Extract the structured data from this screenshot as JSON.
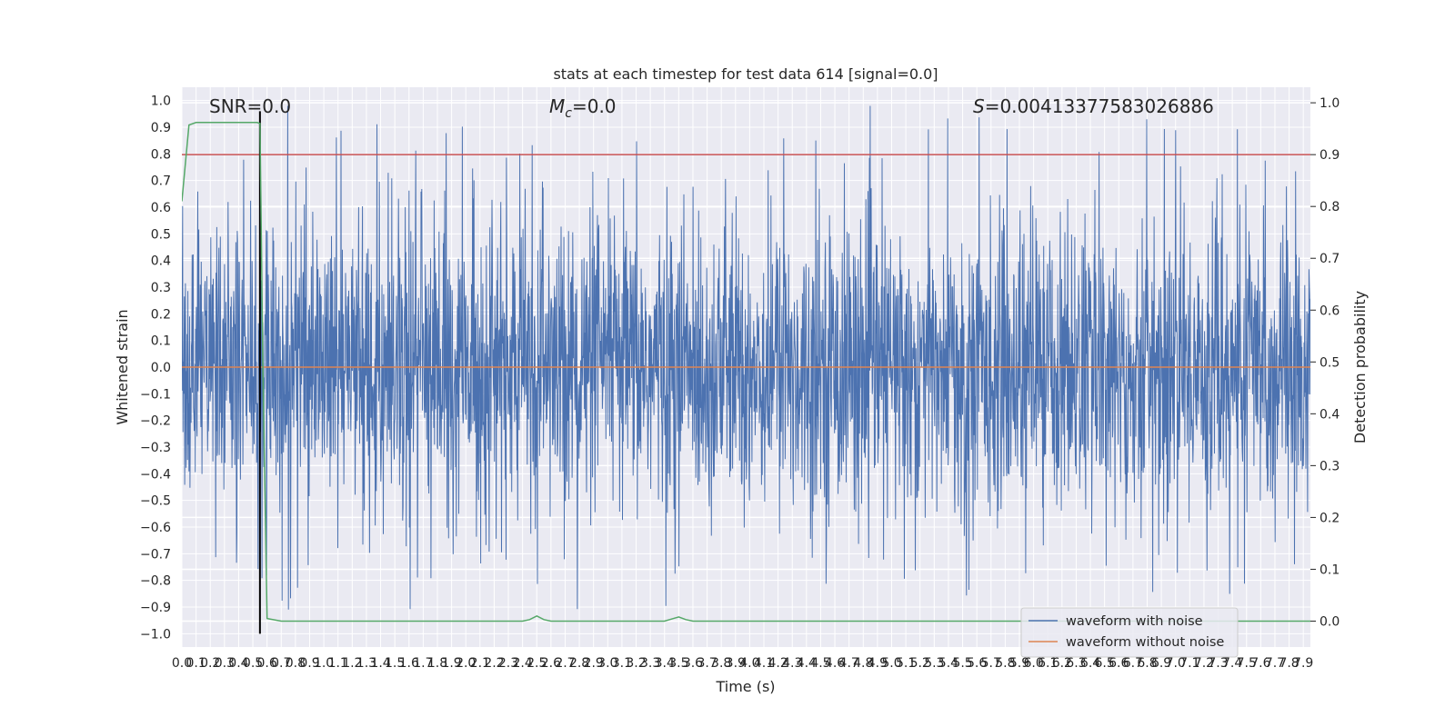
{
  "chart_data": {
    "type": "line",
    "title": "stats at each timestep for test data 614 [signal=0.0]",
    "xlabel": "Time (s)",
    "ylabel_left": "Whitened strain",
    "ylabel_right": "Detection probability",
    "xlim": [
      0.0,
      7.95
    ],
    "ylim_left": [
      -1.05,
      1.05
    ],
    "ylim_right": [
      -0.05,
      1.03
    ],
    "x_ticks": [
      "0.0",
      "0.1",
      "0.2",
      "0.3",
      "0.4",
      "0.5",
      "0.6",
      "0.7",
      "0.8",
      "0.9",
      "1.0",
      "1.1",
      "1.2",
      "1.3",
      "1.4",
      "1.5",
      "1.6",
      "1.7",
      "1.8",
      "1.9",
      "2.0",
      "2.1",
      "2.2",
      "2.3",
      "2.4",
      "2.5",
      "2.6",
      "2.7",
      "2.8",
      "2.9",
      "3.0",
      "3.1",
      "3.2",
      "3.3",
      "3.4",
      "3.5",
      "3.6",
      "3.7",
      "3.8",
      "3.9",
      "4.0",
      "4.1",
      "4.2",
      "4.3",
      "4.4",
      "4.5",
      "4.6",
      "4.7",
      "4.8",
      "4.9",
      "5.0",
      "5.1",
      "5.2",
      "5.3",
      "5.4",
      "5.5",
      "5.6",
      "5.7",
      "5.8",
      "5.9",
      "6.0",
      "6.1",
      "6.2",
      "6.3",
      "6.4",
      "6.5",
      "6.6",
      "6.7",
      "6.8",
      "6.9",
      "7.0",
      "7.1",
      "7.2",
      "7.3",
      "7.4",
      "7.5",
      "7.6",
      "7.7",
      "7.8",
      "7.9"
    ],
    "y_ticks_left": [
      "1.0",
      "0.9",
      "0.8",
      "0.7",
      "0.6",
      "0.5",
      "0.4",
      "0.3",
      "0.2",
      "0.1",
      "0.0",
      "-0.1",
      "-0.2",
      "-0.3",
      "-0.4",
      "-0.5",
      "-0.6",
      "-0.7",
      "-0.8",
      "-0.9",
      "-1.0"
    ],
    "y_ticks_right": [
      "1.0",
      "0.9",
      "0.8",
      "0.7",
      "0.6",
      "0.5",
      "0.4",
      "0.3",
      "0.2",
      "0.1",
      "0.0"
    ],
    "annotations": {
      "snr": "SNR=0.0",
      "mc_symbol": "M",
      "mc_sub": "c",
      "mc_value": "=0.0",
      "s_symbol": "S",
      "s_value": "=0.00413377583026886"
    },
    "threshold_right": 0.9,
    "marker_x": 0.55,
    "grid": true,
    "legend_position": "lower right",
    "series": [
      {
        "name": "waveform with noise",
        "color": "#4c72b0",
        "kind": "noise"
      },
      {
        "name": "waveform without noise",
        "color": "#dd8452",
        "kind": "flat",
        "value": 0.0
      }
    ],
    "probability": {
      "color": "#55a868",
      "x": [
        0.0,
        0.05,
        0.1,
        0.15,
        0.53,
        0.55,
        0.57,
        0.6,
        0.7,
        2.4,
        2.45,
        2.5,
        2.55,
        2.6,
        3.4,
        3.45,
        3.5,
        3.55,
        3.6,
        7.95
      ],
      "y": [
        0.81,
        0.957,
        0.962,
        0.962,
        0.962,
        0.96,
        0.5,
        0.005,
        0.0,
        0.0,
        0.003,
        0.01,
        0.003,
        0.0,
        0.0,
        0.004,
        0.008,
        0.003,
        0.0,
        0.0
      ]
    },
    "threshold_color": "#c44e52",
    "marker_color": "#000000"
  }
}
